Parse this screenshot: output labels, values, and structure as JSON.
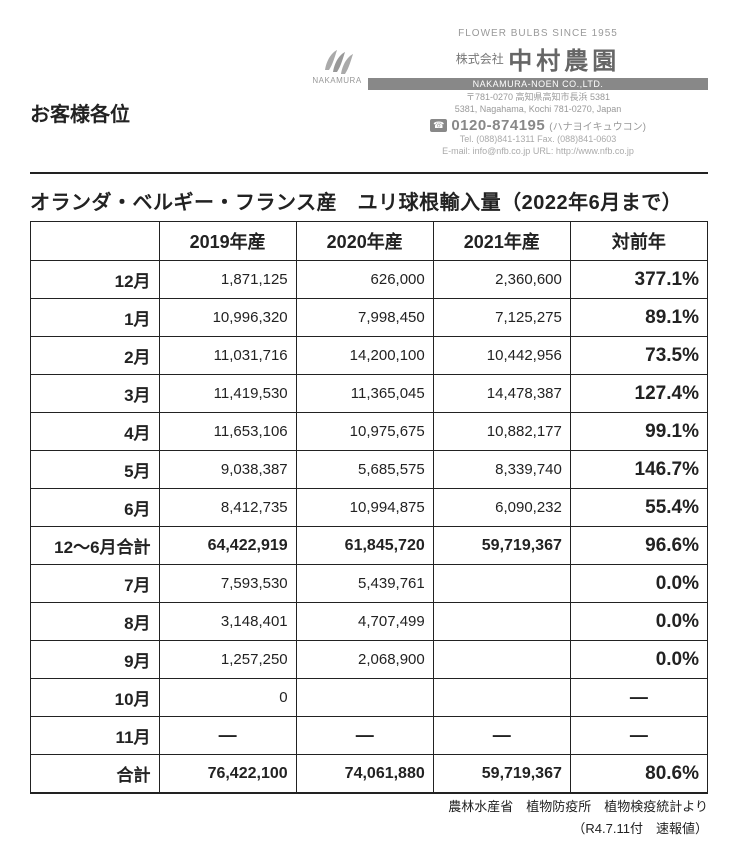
{
  "addressee": "お客様各位",
  "company": {
    "tagline": "FLOWER BULBS SINCE 1955",
    "logo_text": "NAKAMURA",
    "prefix": "株式会社",
    "name": "中村農園",
    "en_bar": "NAKAMURA-NOEN CO.,LTD.",
    "addr_jp": "〒781-0270 高知県高知市長浜 5381",
    "addr_en": "5381, Nagahama, Kochi 781-0270, Japan",
    "freedial_label": "☎",
    "freedial": "0120-874195",
    "freedial_kana": "(ハナヨイキュウコン)",
    "telfax": "Tel. (088)841-1311  Fax. (088)841-0603",
    "mailurl": "E-mail: info@nfb.co.jp  URL: http://www.nfb.co.jp"
  },
  "title": "オランダ・ベルギー・フランス産　ユリ球根輸入量（2022年6月まで）",
  "columns": {
    "month": "",
    "y2019": "2019年産",
    "y2020": "2020年産",
    "y2021": "2021年産",
    "yoy": "対前年"
  },
  "rows": [
    {
      "label": "12月",
      "c": [
        "1,871,125",
        "626,000",
        "2,360,600"
      ],
      "yoy": "377.1%"
    },
    {
      "label": "1月",
      "c": [
        "10,996,320",
        "7,998,450",
        "7,125,275"
      ],
      "yoy": "89.1%"
    },
    {
      "label": "2月",
      "c": [
        "11,031,716",
        "14,200,100",
        "10,442,956"
      ],
      "yoy": "73.5%"
    },
    {
      "label": "3月",
      "c": [
        "11,419,530",
        "11,365,045",
        "14,478,387"
      ],
      "yoy": "127.4%"
    },
    {
      "label": "4月",
      "c": [
        "11,653,106",
        "10,975,675",
        "10,882,177"
      ],
      "yoy": "99.1%"
    },
    {
      "label": "5月",
      "c": [
        "9,038,387",
        "5,685,575",
        "8,339,740"
      ],
      "yoy": "146.7%"
    },
    {
      "label": "6月",
      "c": [
        "8,412,735",
        "10,994,875",
        "6,090,232"
      ],
      "yoy": "55.4%"
    },
    {
      "label": "12～6月合計",
      "c": [
        "64,422,919",
        "61,845,720",
        "59,719,367"
      ],
      "yoy": "96.6%",
      "subtotal": true
    },
    {
      "label": "7月",
      "c": [
        "7,593,530",
        "5,439,761",
        ""
      ],
      "yoy": "0.0%"
    },
    {
      "label": "8月",
      "c": [
        "3,148,401",
        "4,707,499",
        ""
      ],
      "yoy": "0.0%"
    },
    {
      "label": "9月",
      "c": [
        "1,257,250",
        "2,068,900",
        ""
      ],
      "yoy": "0.0%"
    },
    {
      "label": "10月",
      "c": [
        "0",
        "",
        ""
      ],
      "yoy": "―",
      "yoy_dash": true
    },
    {
      "label": "11月",
      "c": [
        "―",
        "―",
        "―"
      ],
      "yoy": "―",
      "dash_row": true,
      "yoy_dash": true
    },
    {
      "label": "合計",
      "c": [
        "76,422,100",
        "74,061,880",
        "59,719,367"
      ],
      "yoy": "80.6%",
      "total": true
    }
  ],
  "source1": "農林水産省　植物防疫所　植物検疫統計より",
  "source2": "（R4.7.11付　速報値）"
}
